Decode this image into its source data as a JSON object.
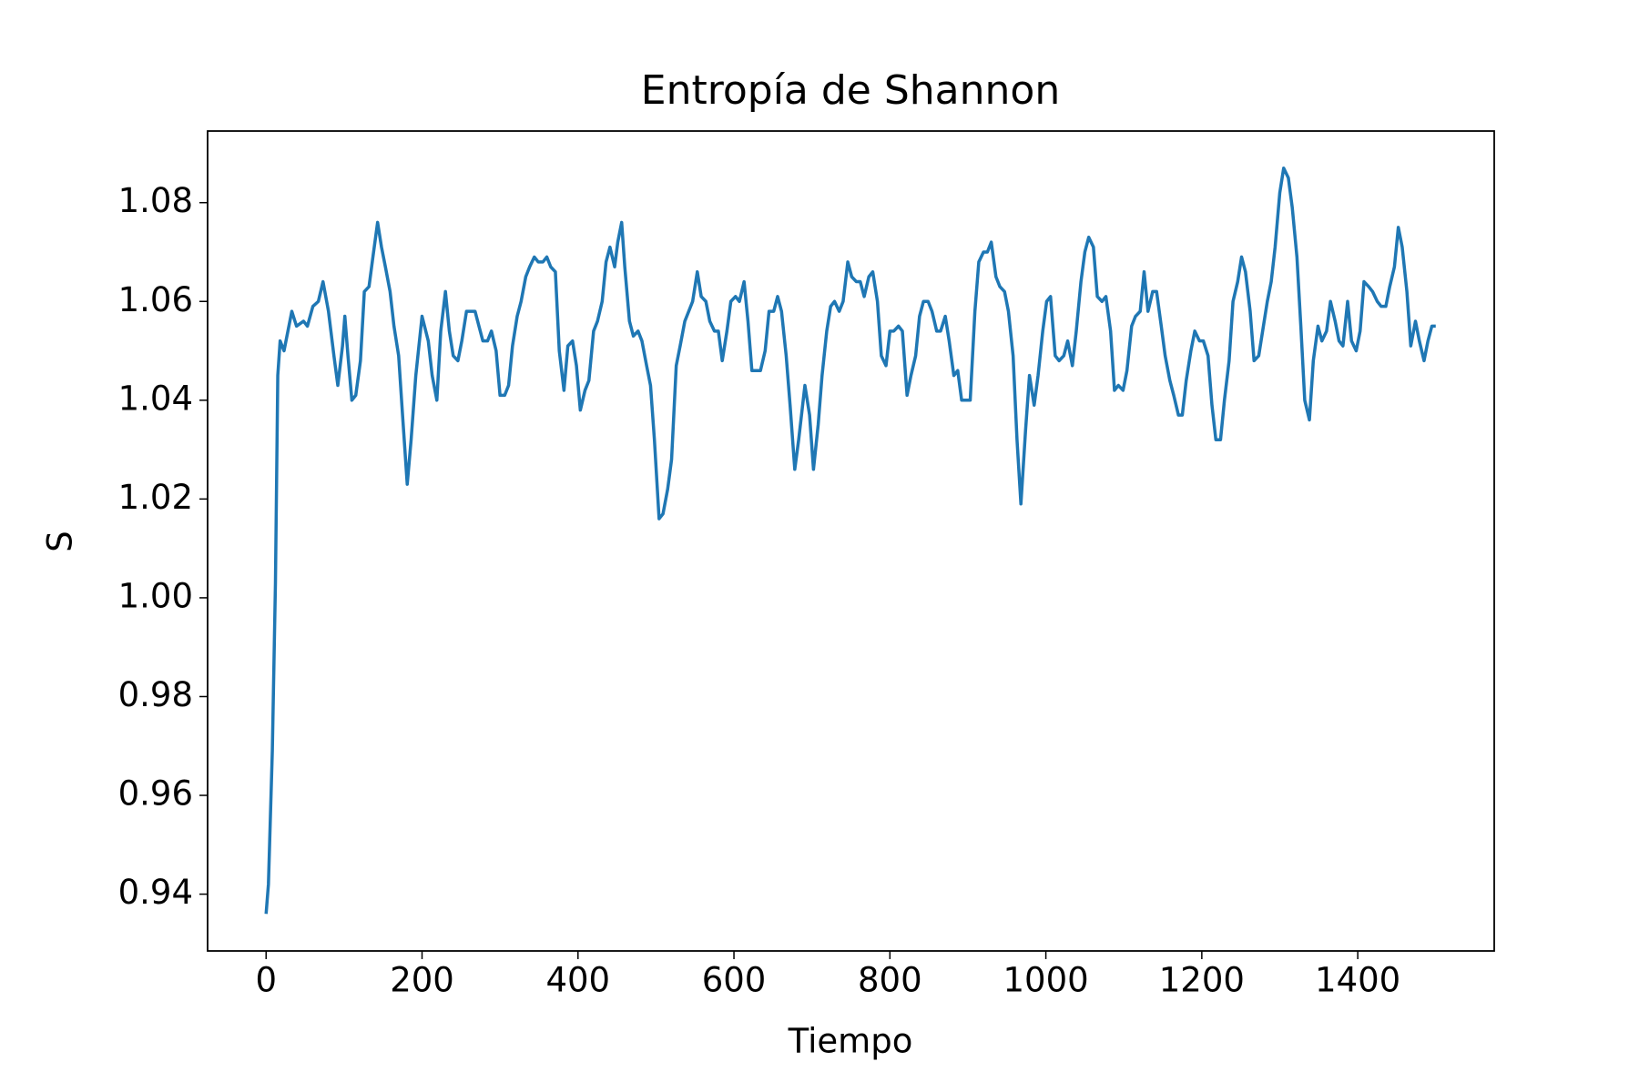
{
  "chart_data": {
    "type": "line",
    "title": "Entropía de Shannon",
    "x_label": "Tiempo",
    "y_label": "S",
    "color": "#1f77b4",
    "grid": false,
    "xlim": [
      -75,
      1575
    ],
    "ylim": [
      0.9285,
      1.0945
    ],
    "xticks": [
      0,
      200,
      400,
      600,
      800,
      1000,
      1200,
      1400
    ],
    "yticks": [
      0.94,
      0.96,
      0.98,
      {
        "value": 1,
        "label": "1.00"
      },
      1.02,
      1.04,
      1.06,
      1.08
    ],
    "x": [
      0,
      3,
      8,
      12,
      15,
      18,
      23,
      33,
      39,
      48,
      53,
      60,
      67,
      73,
      80,
      87,
      92,
      98,
      101,
      105,
      110,
      115,
      121,
      126,
      132,
      137,
      143,
      148,
      153,
      159,
      164,
      170,
      175,
      181,
      186,
      192,
      200,
      208,
      213,
      219,
      224,
      230,
      235,
      240,
      246,
      251,
      257,
      262,
      268,
      273,
      278,
      284,
      289,
      295,
      300,
      306,
      311,
      316,
      322,
      327,
      333,
      338,
      344,
      349,
      355,
      360,
      365,
      371,
      376,
      382,
      387,
      393,
      398,
      403,
      409,
      414,
      420,
      425,
      431,
      436,
      441,
      447,
      451,
      456,
      460,
      466,
      471,
      477,
      482,
      488,
      493,
      498,
      504,
      509,
      515,
      520,
      526,
      531,
      537,
      542,
      547,
      553,
      558,
      564,
      569,
      575,
      580,
      585,
      591,
      596,
      602,
      607,
      613,
      618,
      623,
      629,
      634,
      640,
      645,
      651,
      656,
      661,
      667,
      672,
      678,
      683,
      691,
      697,
      702,
      708,
      713,
      719,
      724,
      729,
      735,
      740,
      746,
      751,
      757,
      762,
      767,
      773,
      778,
      784,
      789,
      795,
      800,
      805,
      811,
      816,
      822,
      827,
      833,
      838,
      843,
      849,
      854,
      860,
      865,
      871,
      876,
      882,
      887,
      892,
      898,
      903,
      909,
      914,
      920,
      925,
      930,
      936,
      941,
      947,
      952,
      958,
      963,
      968,
      974,
      979,
      985,
      990,
      996,
      1001,
      1006,
      1012,
      1017,
      1023,
      1028,
      1034,
      1039,
      1045,
      1050,
      1055,
      1061,
      1066,
      1072,
      1077,
      1083,
      1088,
      1093,
      1099,
      1104,
      1110,
      1115,
      1121,
      1126,
      1131,
      1137,
      1142,
      1148,
      1153,
      1159,
      1164,
      1170,
      1175,
      1180,
      1186,
      1191,
      1197,
      1202,
      1208,
      1213,
      1218,
      1224,
      1229,
      1235,
      1240,
      1246,
      1251,
      1256,
      1262,
      1267,
      1273,
      1278,
      1284,
      1289,
      1294,
      1300,
      1305,
      1311,
      1316,
      1322,
      1327,
      1332,
      1338,
      1343,
      1349,
      1354,
      1360,
      1365,
      1371,
      1376,
      1381,
      1387,
      1392,
      1398,
      1403,
      1408,
      1414,
      1419,
      1425,
      1430,
      1436,
      1441,
      1447,
      1452,
      1457,
      1463,
      1468,
      1474,
      1479,
      1485,
      1490,
      1495,
      1500
    ],
    "values": [
      0.936,
      0.942,
      0.969,
      1.003,
      1.045,
      1.052,
      1.05,
      1.058,
      1.055,
      1.056,
      1.055,
      1.059,
      1.06,
      1.064,
      1.058,
      1.049,
      1.043,
      1.051,
      1.057,
      1.049,
      1.04,
      1.041,
      1.048,
      1.062,
      1.063,
      1.069,
      1.076,
      1.071,
      1.067,
      1.062,
      1.055,
      1.049,
      1.037,
      1.023,
      1.032,
      1.045,
      1.057,
      1.052,
      1.045,
      1.04,
      1.054,
      1.062,
      1.054,
      1.049,
      1.048,
      1.052,
      1.058,
      1.058,
      1.058,
      1.055,
      1.052,
      1.052,
      1.054,
      1.05,
      1.041,
      1.041,
      1.043,
      1.051,
      1.057,
      1.06,
      1.065,
      1.067,
      1.069,
      1.068,
      1.068,
      1.069,
      1.067,
      1.066,
      1.05,
      1.042,
      1.051,
      1.052,
      1.047,
      1.038,
      1.042,
      1.044,
      1.054,
      1.056,
      1.06,
      1.068,
      1.071,
      1.067,
      1.072,
      1.076,
      1.067,
      1.056,
      1.053,
      1.054,
      1.052,
      1.047,
      1.043,
      1.032,
      1.016,
      1.017,
      1.022,
      1.028,
      1.047,
      1.051,
      1.056,
      1.058,
      1.06,
      1.066,
      1.061,
      1.06,
      1.056,
      1.054,
      1.054,
      1.048,
      1.054,
      1.06,
      1.061,
      1.06,
      1.064,
      1.056,
      1.046,
      1.046,
      1.046,
      1.05,
      1.058,
      1.058,
      1.061,
      1.058,
      1.049,
      1.039,
      1.026,
      1.032,
      1.043,
      1.037,
      1.026,
      1.035,
      1.045,
      1.054,
      1.059,
      1.06,
      1.058,
      1.06,
      1.068,
      1.065,
      1.064,
      1.064,
      1.061,
      1.065,
      1.066,
      1.06,
      1.049,
      1.047,
      1.054,
      1.054,
      1.055,
      1.054,
      1.041,
      1.045,
      1.049,
      1.057,
      1.06,
      1.06,
      1.058,
      1.054,
      1.054,
      1.057,
      1.052,
      1.045,
      1.046,
      1.04,
      1.04,
      1.04,
      1.058,
      1.068,
      1.07,
      1.07,
      1.072,
      1.065,
      1.063,
      1.062,
      1.058,
      1.049,
      1.032,
      1.019,
      1.034,
      1.045,
      1.039,
      1.045,
      1.054,
      1.06,
      1.061,
      1.049,
      1.048,
      1.049,
      1.052,
      1.047,
      1.054,
      1.064,
      1.07,
      1.073,
      1.071,
      1.061,
      1.06,
      1.061,
      1.054,
      1.042,
      1.043,
      1.042,
      1.046,
      1.055,
      1.057,
      1.058,
      1.066,
      1.058,
      1.062,
      1.062,
      1.055,
      1.049,
      1.044,
      1.041,
      1.037,
      1.037,
      1.044,
      1.05,
      1.054,
      1.052,
      1.052,
      1.049,
      1.039,
      1.032,
      1.032,
      1.04,
      1.048,
      1.06,
      1.064,
      1.069,
      1.066,
      1.058,
      1.048,
      1.049,
      1.054,
      1.06,
      1.064,
      1.071,
      1.082,
      1.087,
      1.085,
      1.079,
      1.069,
      1.055,
      1.04,
      1.036,
      1.048,
      1.055,
      1.052,
      1.054,
      1.06,
      1.056,
      1.052,
      1.051,
      1.06,
      1.052,
      1.05,
      1.054,
      1.064,
      1.063,
      1.062,
      1.06,
      1.059,
      1.059,
      1.063,
      1.067,
      1.075,
      1.071,
      1.062,
      1.051,
      1.056,
      1.052,
      1.048,
      1.052,
      1.055,
      1.055
    ]
  }
}
